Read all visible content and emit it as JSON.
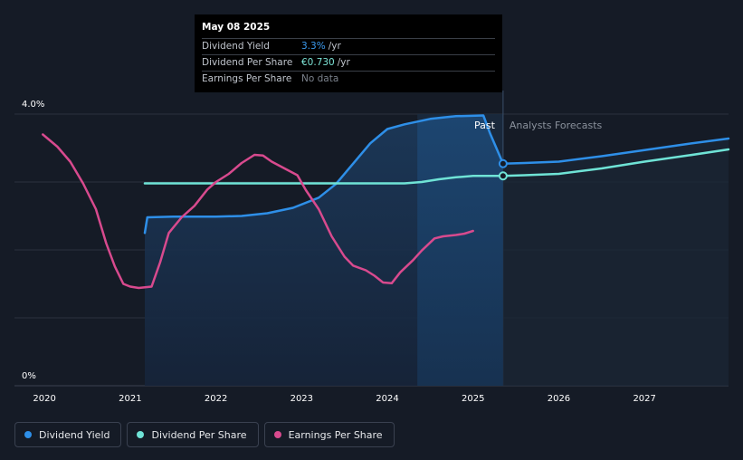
{
  "tooltip": {
    "date": "May 08 2025",
    "rows": [
      {
        "name": "Dividend Yield",
        "value": "3.3%",
        "unit": "/yr",
        "color": "#3b9bf0"
      },
      {
        "name": "Dividend Per Share",
        "value": "€0.730",
        "unit": "/yr",
        "color": "#7ee6d8"
      },
      {
        "name": "Earnings Per Share",
        "value": "No data",
        "unit": "",
        "color": "#7b828c"
      }
    ]
  },
  "legend": [
    {
      "label": "Dividend Yield",
      "color": "#2e8fe8"
    },
    {
      "label": "Dividend Per Share",
      "color": "#6fe3d6"
    },
    {
      "label": "Earnings Per Share",
      "color": "#d84a8e"
    }
  ],
  "chart_data": {
    "type": "line",
    "x_range": [
      2019.65,
      2027.98
    ],
    "y_range": [
      0,
      4.0
    ],
    "y_tick_labels": [
      {
        "value": 4.0,
        "label": "4.0%"
      },
      {
        "value": 0,
        "label": "0%"
      }
    ],
    "x_ticks": [
      2020,
      2021,
      2022,
      2023,
      2024,
      2025,
      2026,
      2027
    ],
    "grid": true,
    "regions": {
      "past_label": "Past",
      "forecast_label": "Analysts Forecasts",
      "split_x": 2025.35,
      "highlight_start": 2024.35
    },
    "series": [
      {
        "name": "Dividend Yield",
        "color": "#2e8fe8",
        "filled": true,
        "points": [
          [
            2021.17,
            2.25
          ],
          [
            2021.2,
            2.48
          ],
          [
            2021.5,
            2.49
          ],
          [
            2022.0,
            2.49
          ],
          [
            2022.3,
            2.5
          ],
          [
            2022.6,
            2.54
          ],
          [
            2022.9,
            2.62
          ],
          [
            2023.2,
            2.77
          ],
          [
            2023.4,
            2.97
          ],
          [
            2023.6,
            3.27
          ],
          [
            2023.8,
            3.57
          ],
          [
            2024.0,
            3.78
          ],
          [
            2024.2,
            3.85
          ],
          [
            2024.5,
            3.93
          ],
          [
            2024.8,
            3.97
          ],
          [
            2025.12,
            3.98
          ],
          [
            2025.2,
            3.71
          ],
          [
            2025.35,
            3.27
          ],
          [
            2025.6,
            3.28
          ],
          [
            2026.0,
            3.3
          ],
          [
            2026.5,
            3.38
          ],
          [
            2027.0,
            3.47
          ],
          [
            2027.5,
            3.56
          ],
          [
            2027.98,
            3.64
          ]
        ]
      },
      {
        "name": "Dividend Per Share",
        "color": "#6fe3d6",
        "filled": false,
        "points": [
          [
            2021.17,
            2.98
          ],
          [
            2021.5,
            2.98
          ],
          [
            2022.0,
            2.98
          ],
          [
            2022.5,
            2.98
          ],
          [
            2023.0,
            2.98
          ],
          [
            2023.5,
            2.98
          ],
          [
            2024.0,
            2.98
          ],
          [
            2024.2,
            2.98
          ],
          [
            2024.4,
            3.0
          ],
          [
            2024.6,
            3.04
          ],
          [
            2024.8,
            3.07
          ],
          [
            2025.0,
            3.09
          ],
          [
            2025.35,
            3.09
          ],
          [
            2025.6,
            3.1
          ],
          [
            2026.0,
            3.12
          ],
          [
            2026.5,
            3.2
          ],
          [
            2027.0,
            3.3
          ],
          [
            2027.5,
            3.39
          ],
          [
            2027.98,
            3.48
          ]
        ]
      },
      {
        "name": "Earnings Per Share",
        "color": "#d84a8e",
        "filled": false,
        "points": [
          [
            2019.98,
            3.7
          ],
          [
            2020.15,
            3.52
          ],
          [
            2020.3,
            3.3
          ],
          [
            2020.45,
            2.98
          ],
          [
            2020.6,
            2.6
          ],
          [
            2020.72,
            2.1
          ],
          [
            2020.82,
            1.76
          ],
          [
            2020.92,
            1.5
          ],
          [
            2021.0,
            1.46
          ],
          [
            2021.1,
            1.44
          ],
          [
            2021.25,
            1.46
          ],
          [
            2021.35,
            1.82
          ],
          [
            2021.45,
            2.25
          ],
          [
            2021.6,
            2.48
          ],
          [
            2021.75,
            2.65
          ],
          [
            2021.9,
            2.89
          ],
          [
            2022.0,
            3.0
          ],
          [
            2022.15,
            3.12
          ],
          [
            2022.3,
            3.28
          ],
          [
            2022.45,
            3.4
          ],
          [
            2022.55,
            3.39
          ],
          [
            2022.65,
            3.3
          ],
          [
            2022.8,
            3.2
          ],
          [
            2022.95,
            3.1
          ],
          [
            2023.05,
            2.88
          ],
          [
            2023.2,
            2.6
          ],
          [
            2023.35,
            2.2
          ],
          [
            2023.5,
            1.9
          ],
          [
            2023.6,
            1.77
          ],
          [
            2023.75,
            1.7
          ],
          [
            2023.85,
            1.62
          ],
          [
            2023.95,
            1.52
          ],
          [
            2024.05,
            1.51
          ],
          [
            2024.15,
            1.67
          ],
          [
            2024.3,
            1.85
          ],
          [
            2024.4,
            1.99
          ],
          [
            2024.55,
            2.17
          ],
          [
            2024.65,
            2.2
          ],
          [
            2024.8,
            2.22
          ],
          [
            2024.9,
            2.24
          ],
          [
            2025.0,
            2.28
          ]
        ]
      }
    ],
    "markers": [
      {
        "series": "Dividend Yield",
        "x": 2025.35,
        "y": 3.27
      },
      {
        "series": "Dividend Per Share",
        "x": 2025.35,
        "y": 3.09
      }
    ]
  }
}
